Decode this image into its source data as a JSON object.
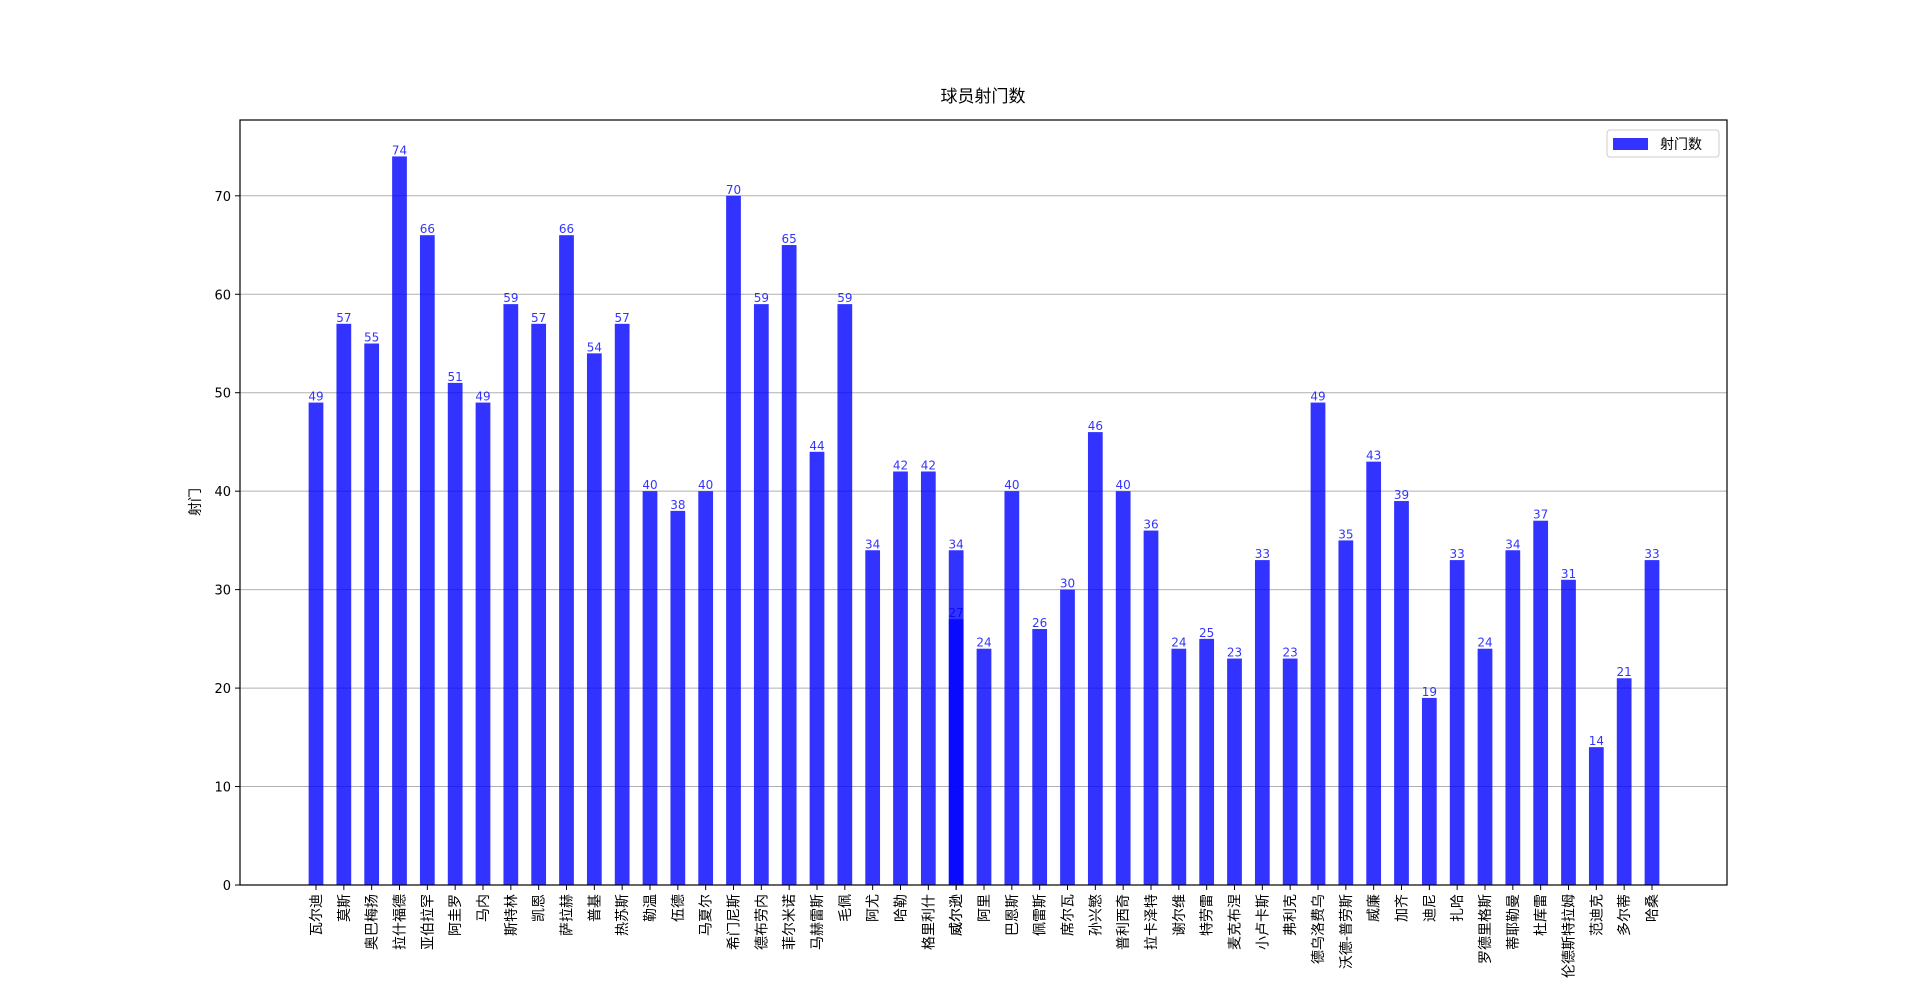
{
  "chart_data": {
    "type": "bar",
    "title": "球员射门数",
    "ylabel": "射门",
    "legend_position": "upper right",
    "series": [
      {
        "name": "射门数",
        "color": "#0000ff",
        "opacity": 0.8,
        "categories": [
          "瓦尔迪",
          "莫斯",
          "奥巴梅扬",
          "拉什福德",
          "亚伯拉罕",
          "阿圭罗",
          "马内",
          "斯特林",
          "凯恩",
          "萨拉赫",
          "普基",
          "热苏斯",
          "勒温",
          "伍德",
          "马夏尔",
          "希门尼斯",
          "德布劳内",
          "菲尔米诺",
          "马赫雷斯",
          "毛佩",
          "阿尤",
          "哈勒",
          "格里利什",
          "威尔逊",
          "威尔逊",
          "阿里",
          "巴恩斯",
          "佩雷斯",
          "席尔瓦",
          "孙兴慜",
          "普利西奇",
          "拉卡泽特",
          "谢尔维",
          "特劳雷",
          "麦克布涅",
          "小卢卡斯",
          "弗利克",
          "德乌洛费乌",
          "沃德-普劳斯",
          "威廉",
          "加齐",
          "迪尼",
          "扎哈",
          "罗德里格斯",
          "蒂耶勒曼",
          "杜库雷",
          "伦德斯特拉姆",
          "范迪克",
          "多尔蒂",
          "哈桑"
        ],
        "values": [
          49,
          57,
          55,
          74,
          66,
          51,
          49,
          59,
          57,
          66,
          54,
          57,
          40,
          38,
          40,
          70,
          59,
          65,
          44,
          59,
          34,
          42,
          42,
          34,
          27,
          24,
          40,
          26,
          30,
          46,
          40,
          36,
          24,
          25,
          23,
          33,
          23,
          49,
          35,
          43,
          39,
          19,
          33,
          24,
          34,
          37,
          31,
          14,
          21,
          33
        ]
      }
    ],
    "ylim": [
      0,
      77.7
    ],
    "yticks": [
      0,
      10,
      20,
      30,
      40,
      50,
      60,
      70
    ],
    "grid": true
  }
}
